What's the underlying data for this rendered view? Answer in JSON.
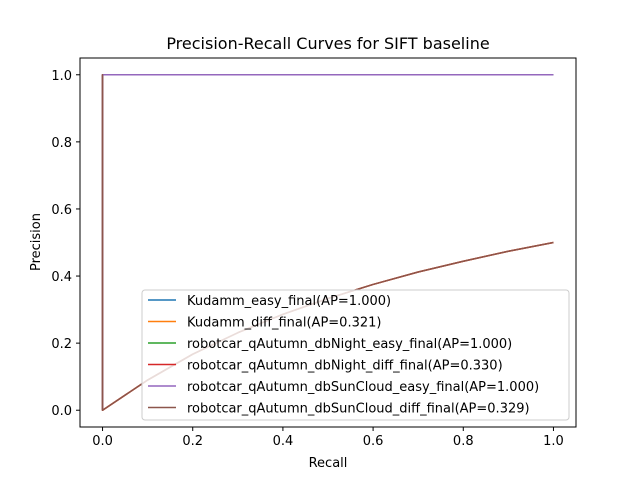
{
  "chart_data": {
    "type": "line",
    "title": "Precision-Recall Curves for SIFT baseline",
    "xlabel": "Recall",
    "ylabel": "Precision",
    "xlim": [
      -0.05,
      1.05
    ],
    "ylim": [
      -0.05,
      1.05
    ],
    "xticks": [
      0.0,
      0.2,
      0.4,
      0.6,
      0.8,
      1.0
    ],
    "yticks": [
      0.0,
      0.2,
      0.4,
      0.6,
      0.8,
      1.0
    ],
    "xtick_labels": [
      "0.0",
      "0.2",
      "0.4",
      "0.6",
      "0.8",
      "1.0"
    ],
    "ytick_labels": [
      "0.0",
      "0.2",
      "0.4",
      "0.6",
      "0.8",
      "1.0"
    ],
    "grid": false,
    "legend_position": "lower-right",
    "series": [
      {
        "name": "Kudamm_easy_final(AP=1.000)",
        "color": "#1f77b4",
        "x": [
          0.0,
          0.0,
          1.0
        ],
        "y": [
          0.0,
          1.0,
          1.0
        ]
      },
      {
        "name": "Kudamm_diff_final(AP=0.321)",
        "color": "#ff7f0e",
        "x": [
          0.0,
          0.0,
          0.0,
          0.1,
          0.2,
          0.3,
          0.4,
          0.5,
          0.6,
          0.7,
          0.8,
          0.9,
          1.0
        ],
        "y": [
          0.0,
          1.0,
          0.0,
          0.09,
          0.167,
          0.231,
          0.286,
          0.333,
          0.375,
          0.412,
          0.444,
          0.474,
          0.5
        ]
      },
      {
        "name": "robotcar_qAutumn_dbNight_easy_final(AP=1.000)",
        "color": "#2ca02c",
        "x": [
          0.0,
          0.0,
          1.0
        ],
        "y": [
          0.0,
          1.0,
          1.0
        ]
      },
      {
        "name": "robotcar_qAutumn_dbNight_diff_final(AP=0.330)",
        "color": "#d62728",
        "x": [
          0.0,
          0.0,
          0.0,
          0.1,
          0.2,
          0.3,
          0.4,
          0.5,
          0.6,
          0.7,
          0.8,
          0.9,
          1.0
        ],
        "y": [
          0.0,
          1.0,
          0.0,
          0.09,
          0.167,
          0.231,
          0.286,
          0.333,
          0.375,
          0.412,
          0.444,
          0.474,
          0.5
        ]
      },
      {
        "name": "robotcar_qAutumn_dbSunCloud_easy_final(AP=1.000)",
        "color": "#9467bd",
        "x": [
          0.0,
          0.0,
          1.0
        ],
        "y": [
          0.0,
          1.0,
          1.0
        ]
      },
      {
        "name": "robotcar_qAutumn_dbSunCloud_diff_final(AP=0.329)",
        "color": "#8c564b",
        "x": [
          0.0,
          0.0,
          0.0,
          0.1,
          0.2,
          0.3,
          0.4,
          0.5,
          0.6,
          0.7,
          0.8,
          0.9,
          1.0
        ],
        "y": [
          0.0,
          1.0,
          0.0,
          0.09,
          0.167,
          0.231,
          0.286,
          0.333,
          0.375,
          0.412,
          0.444,
          0.474,
          0.5
        ]
      }
    ]
  }
}
